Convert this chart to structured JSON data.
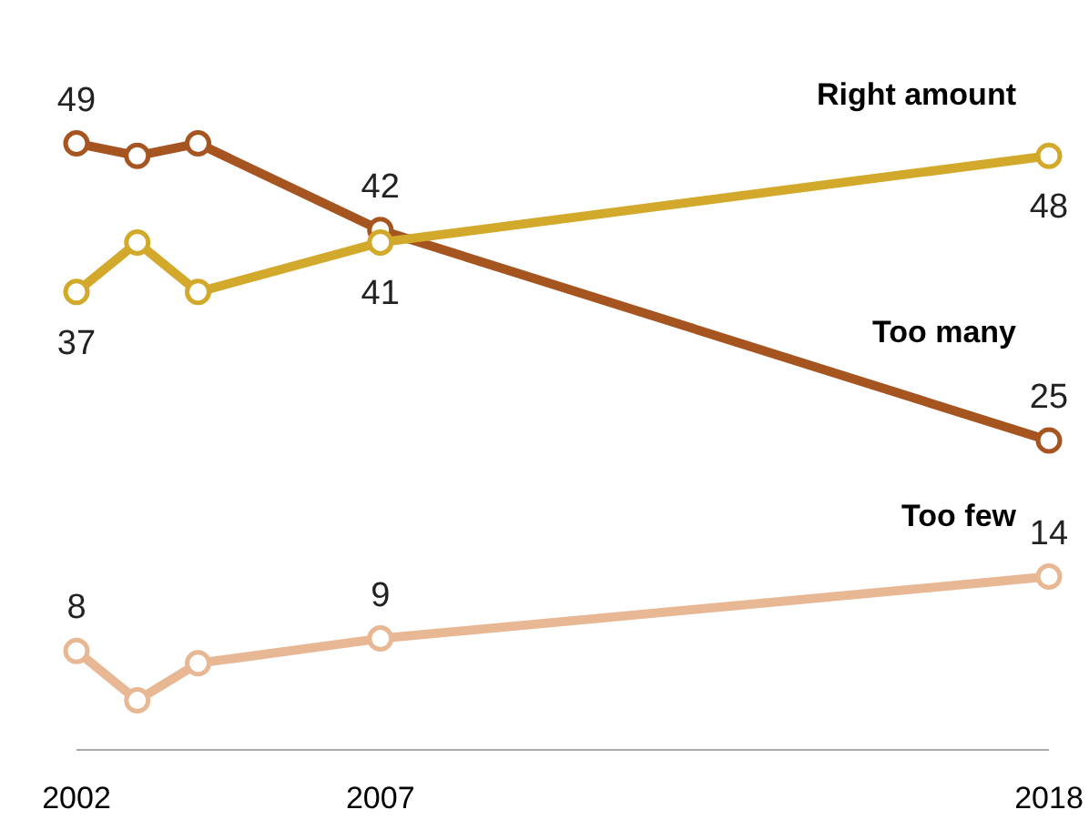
{
  "chart_data": {
    "type": "line",
    "x": [
      2002,
      2003,
      2004,
      2007,
      2018
    ],
    "series": [
      {
        "name": "Too many",
        "color": "#a65420",
        "values": [
          49,
          48,
          49,
          42,
          25
        ],
        "value_labels": [
          "49",
          null,
          null,
          "42",
          "25"
        ]
      },
      {
        "name": "Right amount",
        "color": "#d3a92c",
        "values": [
          37,
          41,
          37,
          41,
          48
        ],
        "value_labels": [
          "37",
          null,
          null,
          "41",
          "48"
        ]
      },
      {
        "name": "Too few",
        "color": "#e8b894",
        "values": [
          8,
          4,
          7,
          9,
          14
        ],
        "value_labels": [
          "8",
          null,
          null,
          "9",
          "14"
        ]
      }
    ],
    "xlim": [
      2002,
      2018
    ],
    "xticks": [
      2002,
      2007,
      2018
    ],
    "tick_labels": "x",
    "marker": "circle"
  }
}
